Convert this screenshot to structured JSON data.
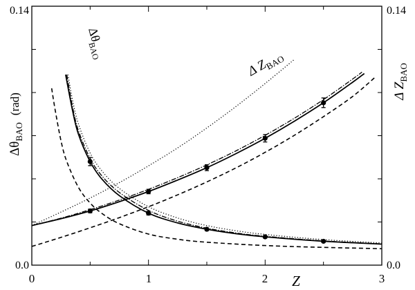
{
  "chart_data": {
    "type": "line",
    "xlabel": "Z",
    "ylabel_left": "Δθ",
    "ylabel_left_sub": "BAO",
    "ylabel_left_unit": "(rad)",
    "ylabel_right": "Δ Z",
    "ylabel_right_sub": "BAO",
    "xlim": [
      0,
      3
    ],
    "ylim": [
      0,
      0.14
    ],
    "y2lim": [
      0,
      0.14
    ],
    "x_ticks": [
      "0",
      "1",
      "2",
      "3"
    ],
    "y_ticks_labeled": [
      "0.0",
      "0.14"
    ],
    "y2_ticks_labeled": [
      "0.0",
      "0.14"
    ],
    "grid": false,
    "curve_labels": [
      {
        "text": "Δθ",
        "sub": "BAO",
        "series": "dtheta"
      },
      {
        "text": "Δ Z",
        "sub": "BAO",
        "series": "dz"
      }
    ],
    "series": [
      {
        "id": "dz_solid",
        "group": "dz",
        "style": "solid",
        "x": [
          0.0,
          0.25,
          0.5,
          0.75,
          1.0,
          1.25,
          1.5,
          1.75,
          2.0,
          2.25,
          2.5,
          2.75,
          2.85
        ],
        "values": [
          0.0214,
          0.0251,
          0.0293,
          0.0343,
          0.0398,
          0.046,
          0.0527,
          0.0603,
          0.0686,
          0.0778,
          0.0878,
          0.0989,
          0.1036
        ]
      },
      {
        "id": "dz_dashdot",
        "group": "dz",
        "style": "dashdot",
        "x": [
          0.0,
          0.25,
          0.5,
          0.75,
          1.0,
          1.25,
          1.5,
          1.75,
          2.0,
          2.25,
          2.5,
          2.75,
          2.83
        ],
        "values": [
          0.0214,
          0.0254,
          0.03,
          0.0352,
          0.041,
          0.0473,
          0.0542,
          0.0618,
          0.0702,
          0.0794,
          0.0895,
          0.1006,
          0.1044
        ]
      },
      {
        "id": "dz_dotted",
        "group": "dz",
        "style": "dotted",
        "x": [
          0.0,
          0.25,
          0.5,
          0.75,
          1.0,
          1.25,
          1.5,
          1.75,
          2.0,
          2.25
        ],
        "values": [
          0.0214,
          0.0287,
          0.0363,
          0.0446,
          0.0537,
          0.0634,
          0.0742,
          0.0858,
          0.0982,
          0.1112
        ]
      },
      {
        "id": "dz_dashed",
        "group": "dz",
        "style": "dashed",
        "x": [
          0.0,
          0.25,
          0.5,
          0.75,
          1.0,
          1.25,
          1.5,
          1.75,
          2.0,
          2.25,
          2.5,
          2.75,
          2.95
        ],
        "values": [
          0.0101,
          0.015,
          0.0202,
          0.0257,
          0.0316,
          0.038,
          0.045,
          0.0526,
          0.061,
          0.0702,
          0.0803,
          0.0912,
          0.102
        ]
      },
      {
        "id": "dtheta_solid",
        "group": "dtheta",
        "style": "solid",
        "x": [
          0.29,
          0.35,
          0.4,
          0.5,
          0.6,
          0.75,
          1.0,
          1.25,
          1.5,
          1.75,
          2.0,
          2.5,
          3.0
        ],
        "values": [
          0.103,
          0.0834,
          0.0707,
          0.056,
          0.0466,
          0.0376,
          0.0281,
          0.0228,
          0.0194,
          0.017,
          0.0153,
          0.0129,
          0.0114
        ]
      },
      {
        "id": "dtheta_dashdot",
        "group": "dtheta",
        "style": "dashdot",
        "x": [
          0.3,
          0.35,
          0.4,
          0.5,
          0.6,
          0.75,
          1.0,
          1.25,
          1.5,
          1.75,
          2.0,
          2.5,
          3.0
        ],
        "values": [
          0.103,
          0.0854,
          0.0726,
          0.0577,
          0.0483,
          0.0393,
          0.0296,
          0.0238,
          0.02,
          0.0174,
          0.0156,
          0.0131,
          0.0115
        ]
      },
      {
        "id": "dtheta_dotted",
        "group": "dtheta",
        "style": "dotted",
        "x": [
          0.31,
          0.35,
          0.4,
          0.5,
          0.6,
          0.75,
          1.0,
          1.25,
          1.5,
          1.75,
          2.0,
          2.5,
          3.0
        ],
        "values": [
          0.103,
          0.089,
          0.0762,
          0.0606,
          0.051,
          0.0415,
          0.0316,
          0.0255,
          0.0214,
          0.0186,
          0.0166,
          0.0138,
          0.012
        ]
      },
      {
        "id": "dtheta_dashed",
        "group": "dtheta",
        "style": "dashed",
        "x": [
          0.17,
          0.2,
          0.25,
          0.3,
          0.4,
          0.5,
          0.6,
          0.75,
          1.0,
          1.25,
          1.5,
          2.0,
          2.5,
          3.0
        ],
        "values": [
          0.0956,
          0.084,
          0.0672,
          0.056,
          0.042,
          0.0336,
          0.028,
          0.0224,
          0.0168,
          0.014,
          0.0124,
          0.0106,
          0.0096,
          0.0089
        ]
      }
    ],
    "points": [
      {
        "group": "dtheta",
        "x": [
          0.5,
          1.0,
          1.5,
          2.0,
          2.5
        ],
        "values": [
          0.056,
          0.0281,
          0.0194,
          0.0153,
          0.0129
        ],
        "errors": [
          0.0022,
          0.001,
          0.0007,
          0.0006,
          0.0005
        ]
      },
      {
        "group": "dz",
        "x": [
          0.5,
          1.0,
          1.5,
          2.0,
          2.5
        ],
        "values": [
          0.0293,
          0.0398,
          0.0527,
          0.0686,
          0.0878
        ],
        "errors": [
          0.001,
          0.0012,
          0.0016,
          0.002,
          0.0026
        ]
      }
    ]
  }
}
